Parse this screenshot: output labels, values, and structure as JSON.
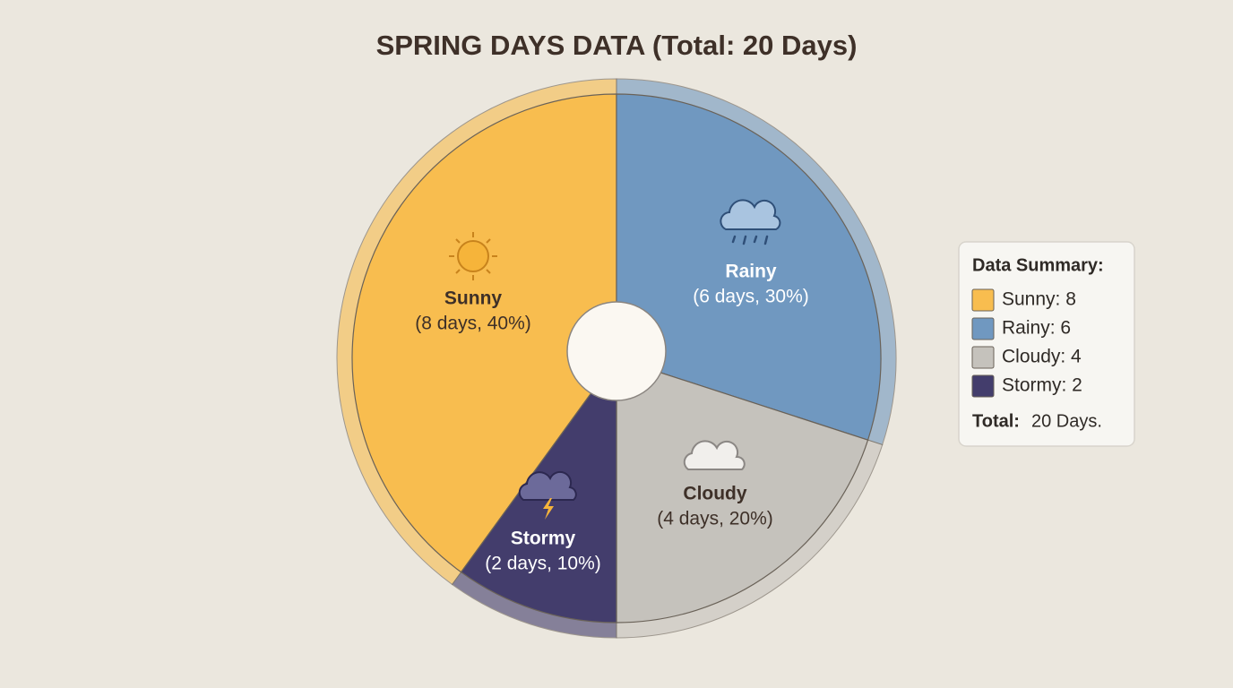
{
  "chart_data": {
    "type": "pie",
    "title": "SPRING DAYS DATA (Total: 20 Days)",
    "categories": [
      "Sunny",
      "Rainy",
      "Cloudy",
      "Stormy"
    ],
    "values": [
      8,
      6,
      4,
      2
    ],
    "value_labels": [
      "(8 days, 40%)",
      "(6 days, 30%)",
      "(4 days, 20%)",
      "(2 days, 10%)"
    ],
    "colors": [
      "#f8bd4f",
      "#7098c0",
      "#c5c2bc",
      "#433d6c"
    ],
    "legend": {
      "title": "Data Summary:",
      "entries": [
        "Sunny: 8",
        "Rainy: 6",
        "Cloudy: 4",
        "Stormy: 2"
      ],
      "total_label": "Total:",
      "total_value": "20 Days."
    }
  }
}
